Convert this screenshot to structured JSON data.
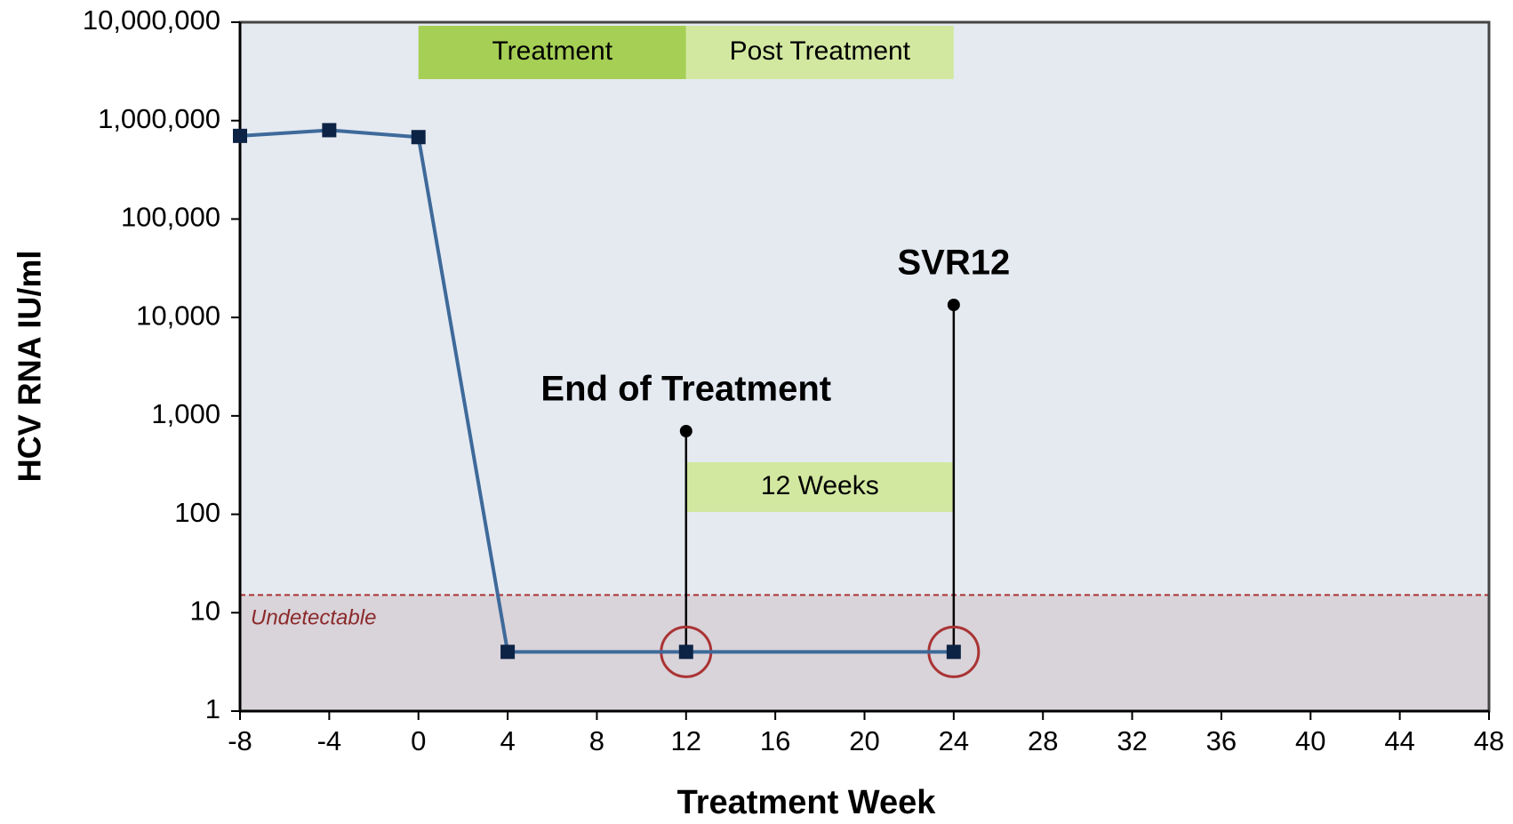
{
  "chart_data": {
    "type": "line",
    "x_label": "Treatment Week",
    "y_label": "HCV RNA IU/ml",
    "x": [
      -8,
      -4,
      0,
      4,
      12,
      24
    ],
    "values": [
      700000,
      800000,
      680000,
      4,
      4,
      4
    ],
    "color": "#3e6a9a",
    "marker_color": "#0d2345",
    "log_scale": true,
    "xlim": [
      -8,
      48
    ],
    "xticks": [
      -8,
      -4,
      0,
      4,
      8,
      12,
      16,
      20,
      24,
      28,
      32,
      36,
      40,
      44,
      48
    ],
    "ylim": [
      1,
      10000000
    ],
    "yticks": [
      1,
      10,
      100,
      {
        "value": 1000,
        "label": "1,000"
      },
      {
        "value": 10000,
        "label": "10,000"
      },
      {
        "value": 100000,
        "label": "100,000"
      },
      {
        "value": 1000000,
        "label": "1,000,000"
      },
      {
        "value": 10000000,
        "label": "10,000,000"
      }
    ],
    "annotations": {
      "treatment": "Treatment",
      "post_treatment": "Post Treatment",
      "interval": "12 Weeks",
      "end_of_treatment": "End of Treatment",
      "svr": "SVR12",
      "undetectable": "Undetectable"
    }
  }
}
